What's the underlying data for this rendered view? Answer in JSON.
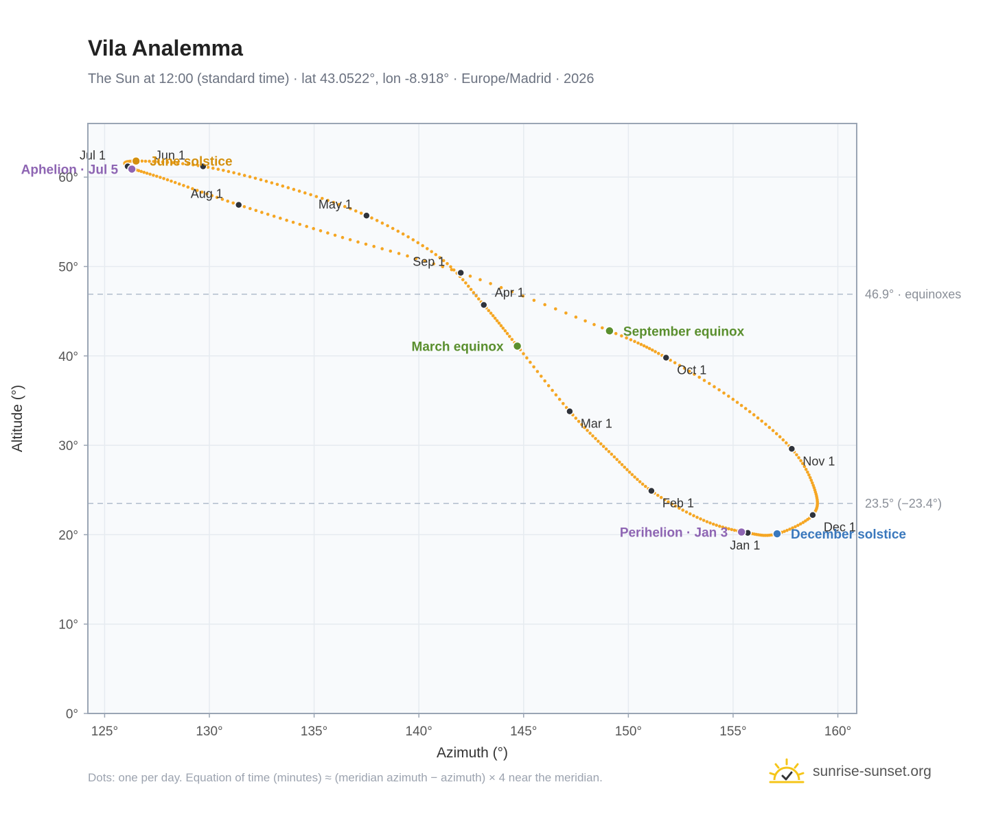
{
  "header": {
    "title": "Vila Analemma",
    "subtitle": "The Sun at 12:00 (standard time) · lat 43.0522°, lon -8.918° · Europe/Madrid · 2026"
  },
  "footer": {
    "note": "Dots: one per day. Equation of time (minutes) ≈ (meridian azimuth − azimuth) × 4 near the meridian.",
    "brand": "sunrise-sunset.org"
  },
  "colors": {
    "curve": "#f5a623",
    "month_dot": "#2f333b",
    "solstice_june": "#d4900e",
    "solstice_december": "#3a78bd",
    "equinox": "#5a8f2e",
    "apsis": "#8e65b3",
    "grid": "#e6ebf0",
    "plot_bg": "#f8fafc",
    "frame": "#9aa5b4",
    "ref_line": "#b0bccb"
  },
  "chart_data": {
    "type": "scatter",
    "title": "Vila Analemma",
    "xlabel": "Azimuth (°)",
    "ylabel": "Altitude (°)",
    "xlim": [
      124.2,
      160.9
    ],
    "ylim": [
      0,
      66
    ],
    "xticks": [
      125,
      130,
      135,
      140,
      145,
      150,
      155,
      160
    ],
    "xtick_labels": [
      "125°",
      "130°",
      "135°",
      "140°",
      "145°",
      "150°",
      "155°",
      "160°"
    ],
    "yticks": [
      0,
      10,
      20,
      30,
      40,
      50,
      60
    ],
    "ytick_labels": [
      "0°",
      "10°",
      "20°",
      "30°",
      "40°",
      "50°",
      "60°"
    ],
    "grid": true,
    "reference_lines": [
      {
        "y": 46.9,
        "label": "46.9° · equinoxes"
      },
      {
        "y": 23.5,
        "label": "23.5° (−23.4°)"
      }
    ],
    "path_keypoints": [
      {
        "date": "Jan 1",
        "az": 155.7,
        "alt": 20.2
      },
      {
        "date": "Jan 15",
        "az": 153.6,
        "alt": 21.6
      },
      {
        "date": "Feb 1",
        "az": 151.1,
        "alt": 24.9
      },
      {
        "date": "Feb 15",
        "az": 149.2,
        "alt": 29.0
      },
      {
        "date": "Mar 1",
        "az": 147.2,
        "alt": 33.8
      },
      {
        "date": "Mar 20",
        "az": 144.7,
        "alt": 41.1
      },
      {
        "date": "Apr 1",
        "az": 143.1,
        "alt": 45.7
      },
      {
        "date": "Apr 15",
        "az": 141.0,
        "alt": 51.0
      },
      {
        "date": "May 1",
        "az": 137.5,
        "alt": 55.7
      },
      {
        "date": "May 15",
        "az": 133.5,
        "alt": 59.0
      },
      {
        "date": "Jun 1",
        "az": 129.7,
        "alt": 61.2
      },
      {
        "date": "Jun 21",
        "az": 126.5,
        "alt": 61.8
      },
      {
        "date": "Jul 1",
        "az": 126.1,
        "alt": 61.2
      },
      {
        "date": "Jul 15",
        "az": 128.0,
        "alt": 59.7
      },
      {
        "date": "Aug 1",
        "az": 131.4,
        "alt": 56.9
      },
      {
        "date": "Aug 15",
        "az": 136.0,
        "alt": 53.5
      },
      {
        "date": "Sep 1",
        "az": 142.0,
        "alt": 49.3
      },
      {
        "date": "Sep 23",
        "az": 149.1,
        "alt": 42.8
      },
      {
        "date": "Oct 1",
        "az": 151.8,
        "alt": 39.8
      },
      {
        "date": "Oct 15",
        "az": 155.2,
        "alt": 34.8
      },
      {
        "date": "Nov 1",
        "az": 157.8,
        "alt": 29.6
      },
      {
        "date": "Nov 15",
        "az": 158.9,
        "alt": 25.0
      },
      {
        "date": "Dec 1",
        "az": 158.8,
        "alt": 22.2
      },
      {
        "date": "Dec 21",
        "az": 157.1,
        "alt": 20.1
      },
      {
        "date": "Jan 1",
        "az": 155.7,
        "alt": 20.2
      }
    ],
    "month_markers": [
      {
        "label": "Jan 1",
        "az": 155.7,
        "alt": 20.2,
        "anchor": "below"
      },
      {
        "label": "Feb 1",
        "az": 151.1,
        "alt": 24.9,
        "anchor": "below-right"
      },
      {
        "label": "Mar 1",
        "az": 147.2,
        "alt": 33.8,
        "anchor": "below-right"
      },
      {
        "label": "Apr 1",
        "az": 143.1,
        "alt": 45.7,
        "anchor": "above-right"
      },
      {
        "label": "May 1",
        "az": 137.5,
        "alt": 55.7,
        "anchor": "above-left"
      },
      {
        "label": "Jun 1",
        "az": 129.7,
        "alt": 61.2,
        "anchor": "above-left"
      },
      {
        "label": "Jul 1",
        "az": 126.1,
        "alt": 61.2,
        "anchor": "above-left"
      },
      {
        "label": "Aug 1",
        "az": 131.4,
        "alt": 56.9,
        "anchor": "above-left"
      },
      {
        "label": "Sep 1",
        "az": 142.0,
        "alt": 49.3,
        "anchor": "above-left"
      },
      {
        "label": "Oct 1",
        "az": 151.8,
        "alt": 39.8,
        "anchor": "below-right"
      },
      {
        "label": "Nov 1",
        "az": 157.8,
        "alt": 29.6,
        "anchor": "below-right"
      },
      {
        "label": "Dec 1",
        "az": 158.8,
        "alt": 22.2,
        "anchor": "below-right"
      }
    ],
    "events": [
      {
        "label": "June solstice",
        "az": 126.5,
        "alt": 61.8,
        "color": "#d4900e",
        "side": "right"
      },
      {
        "label": "Aphelion · Jul 5",
        "az": 126.3,
        "alt": 60.9,
        "color": "#8e65b3",
        "side": "left"
      },
      {
        "label": "March equinox",
        "az": 144.7,
        "alt": 41.1,
        "color": "#5a8f2e",
        "side": "left"
      },
      {
        "label": "September equinox",
        "az": 149.1,
        "alt": 42.8,
        "color": "#5a8f2e",
        "side": "right"
      },
      {
        "label": "Perihelion · Jan 3",
        "az": 155.4,
        "alt": 20.3,
        "color": "#8e65b3",
        "side": "left"
      },
      {
        "label": "December solstice",
        "az": 157.1,
        "alt": 20.1,
        "color": "#3a78bd",
        "side": "right"
      }
    ]
  }
}
